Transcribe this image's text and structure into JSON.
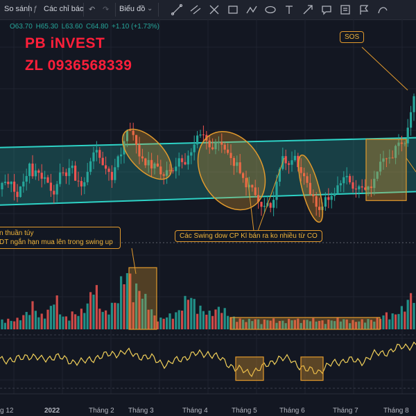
{
  "toolbar": {
    "compare_label": "So sánh",
    "indicators_label": "Các chỉ báo",
    "chart_label": "Biểu đồ",
    "tools": [
      "trend-line-icon",
      "parallel-channel-icon",
      "cross-icon",
      "rectangle-icon",
      "path-icon",
      "ellipse-icon",
      "text-icon",
      "arrow-icon",
      "comment-icon",
      "note-icon",
      "flag-icon",
      "curve-icon"
    ]
  },
  "ohlc": {
    "open": "O63.70",
    "high": "H65.30",
    "low": "L63.60",
    "close": "C64.80",
    "change": "+1.10 (+1.73%)"
  },
  "brand": {
    "line1": "PB iNVEST",
    "line2": "ZL 0936568339"
  },
  "annotations": {
    "sos": "SOS",
    "swing_down": "Các Swing dow CP Kl bán ra ko nhiều từ CO",
    "left_line1": "n thuần túy",
    "left_line2": "DT ngắn hạn mua lên trong swing up"
  },
  "colors": {
    "background": "#131722",
    "up": "#26a69a",
    "down": "#ef5350",
    "channel": "#2ed3c6",
    "annotation": "#e29a2d",
    "oscillator": "#f2d15a",
    "brand": "#ff1f3a"
  },
  "chart_data": {
    "type": "candlestick",
    "title": "",
    "xlabel": "",
    "ylabel": "",
    "x_ticks": [
      "g 12",
      "2022",
      "Tháng 2",
      "Tháng 3",
      "Tháng 4",
      "Tháng 5",
      "Tháng 6",
      "Tháng 7",
      "Tháng 8"
    ],
    "price_range": [
      52,
      80
    ],
    "price_path": [
      [
        0,
        59.5
      ],
      [
        6,
        60.2
      ],
      [
        12,
        59.5
      ],
      [
        18,
        60.8
      ],
      [
        24,
        58.8
      ],
      [
        30,
        60.5
      ],
      [
        36,
        61.3
      ],
      [
        42,
        63.2
      ],
      [
        48,
        60.3
      ],
      [
        54,
        61.8
      ],
      [
        60,
        60.4
      ],
      [
        66,
        61.6
      ],
      [
        72,
        60.4
      ],
      [
        78,
        59.2
      ],
      [
        84,
        61.4
      ],
      [
        90,
        61.8
      ],
      [
        96,
        60.8
      ],
      [
        102,
        62.2
      ],
      [
        108,
        61.4
      ],
      [
        114,
        61.5
      ],
      [
        120,
        60.1
      ],
      [
        126,
        62.3
      ],
      [
        132,
        63.1
      ],
      [
        138,
        64.3
      ],
      [
        144,
        62.8
      ],
      [
        150,
        61.7
      ],
      [
        156,
        62.6
      ],
      [
        162,
        60.6
      ],
      [
        168,
        63.7
      ],
      [
        174,
        64.8
      ],
      [
        180,
        65.8
      ],
      [
        186,
        67.3
      ],
      [
        192,
        66.3
      ],
      [
        198,
        65.1
      ],
      [
        204,
        64.2
      ],
      [
        210,
        63.1
      ],
      [
        216,
        63.7
      ],
      [
        222,
        62.4
      ],
      [
        228,
        61.7
      ],
      [
        234,
        60.9
      ],
      [
        240,
        61.8
      ],
      [
        246,
        62.8
      ],
      [
        252,
        62.3
      ],
      [
        258,
        63.8
      ],
      [
        264,
        63.3
      ],
      [
        270,
        63.7
      ],
      [
        276,
        64.1
      ],
      [
        282,
        65.4
      ],
      [
        288,
        66.4
      ],
      [
        294,
        67.0
      ],
      [
        300,
        65.8
      ],
      [
        306,
        65.3
      ],
      [
        312,
        66.3
      ],
      [
        318,
        65.0
      ],
      [
        324,
        64.4
      ],
      [
        330,
        63.3
      ],
      [
        336,
        62.5
      ],
      [
        342,
        63.5
      ],
      [
        348,
        62.1
      ],
      [
        354,
        60.4
      ],
      [
        360,
        59.7
      ],
      [
        366,
        58.6
      ],
      [
        372,
        57.3
      ],
      [
        378,
        56.7
      ],
      [
        384,
        58.1
      ],
      [
        390,
        57.6
      ],
      [
        396,
        59.3
      ],
      [
        402,
        62.2
      ],
      [
        408,
        63.8
      ],
      [
        414,
        62.6
      ],
      [
        420,
        62.9
      ],
      [
        426,
        63.7
      ],
      [
        432,
        62.7
      ],
      [
        438,
        61.5
      ],
      [
        444,
        60.3
      ],
      [
        450,
        58.2
      ],
      [
        456,
        57.1
      ],
      [
        462,
        56.3
      ],
      [
        468,
        57.5
      ],
      [
        474,
        58.3
      ],
      [
        480,
        59.1
      ],
      [
        486,
        60.6
      ],
      [
        492,
        61.0
      ],
      [
        498,
        60.7
      ],
      [
        504,
        60.1
      ],
      [
        510,
        59.1
      ],
      [
        516,
        59.7
      ],
      [
        522,
        59.9
      ],
      [
        528,
        60.4
      ],
      [
        534,
        59.5
      ],
      [
        540,
        61.2
      ],
      [
        546,
        61.8
      ],
      [
        552,
        63.1
      ],
      [
        558,
        63.4
      ],
      [
        564,
        63.9
      ],
      [
        570,
        65.2
      ],
      [
        576,
        66.4
      ],
      [
        582,
        65.8
      ],
      [
        588,
        66.8
      ],
      [
        594,
        70.5
      ],
      [
        600,
        71.8
      ]
    ],
    "channel": {
      "upper": [
        [
          0,
          65.1
        ],
        [
          600,
          66.4
        ]
      ],
      "lower": [
        [
          0,
          57.4
        ],
        [
          600,
          59.2
        ]
      ]
    },
    "volume": {
      "range": [
        0,
        100
      ],
      "path": [
        [
          0,
          14
        ],
        [
          8,
          18
        ],
        [
          16,
          15
        ],
        [
          24,
          17
        ],
        [
          32,
          22
        ],
        [
          40,
          30
        ],
        [
          48,
          45
        ],
        [
          56,
          22
        ],
        [
          64,
          26
        ],
        [
          72,
          35
        ],
        [
          80,
          62
        ],
        [
          88,
          24
        ],
        [
          96,
          20
        ],
        [
          104,
          28
        ],
        [
          112,
          26
        ],
        [
          120,
          34
        ],
        [
          128,
          46
        ],
        [
          136,
          90
        ],
        [
          144,
          38
        ],
        [
          152,
          28
        ],
        [
          160,
          42
        ],
        [
          168,
          46
        ],
        [
          176,
          88
        ],
        [
          184,
          100
        ],
        [
          192,
          74
        ],
        [
          200,
          70
        ],
        [
          208,
          58
        ],
        [
          216,
          40
        ],
        [
          224,
          20
        ],
        [
          232,
          18
        ],
        [
          240,
          22
        ],
        [
          248,
          26
        ],
        [
          256,
          28
        ],
        [
          264,
          44
        ],
        [
          272,
          62
        ],
        [
          280,
          48
        ],
        [
          288,
          38
        ],
        [
          296,
          30
        ],
        [
          304,
          28
        ],
        [
          312,
          34
        ],
        [
          320,
          40
        ],
        [
          328,
          26
        ],
        [
          336,
          20
        ],
        [
          344,
          18
        ],
        [
          352,
          16
        ],
        [
          360,
          16
        ],
        [
          368,
          18
        ],
        [
          376,
          14
        ],
        [
          384,
          16
        ],
        [
          392,
          18
        ],
        [
          400,
          14
        ],
        [
          408,
          14
        ],
        [
          416,
          16
        ],
        [
          424,
          18
        ],
        [
          432,
          16
        ],
        [
          440,
          15
        ],
        [
          448,
          18
        ],
        [
          456,
          16
        ],
        [
          464,
          14
        ],
        [
          472,
          15
        ],
        [
          480,
          16
        ],
        [
          488,
          18
        ],
        [
          496,
          17
        ],
        [
          504,
          15
        ],
        [
          512,
          14
        ],
        [
          520,
          15
        ],
        [
          528,
          17
        ],
        [
          536,
          16
        ],
        [
          544,
          18
        ],
        [
          552,
          24
        ],
        [
          560,
          28
        ],
        [
          568,
          24
        ],
        [
          576,
          32
        ],
        [
          584,
          40
        ],
        [
          592,
          58
        ],
        [
          600,
          68
        ]
      ]
    },
    "oscillator": {
      "range": [
        -1,
        1
      ],
      "values": [
        [
          0,
          0.1
        ],
        [
          20,
          0.0
        ],
        [
          40,
          0.22
        ],
        [
          60,
          0.05
        ],
        [
          80,
          0.18
        ],
        [
          100,
          0.0
        ],
        [
          120,
          -0.05
        ],
        [
          140,
          0.15
        ],
        [
          160,
          0.25
        ],
        [
          180,
          0.35
        ],
        [
          200,
          0.2
        ],
        [
          220,
          0.1
        ],
        [
          240,
          -0.15
        ],
        [
          260,
          0.08
        ],
        [
          280,
          0.25
        ],
        [
          300,
          0.3
        ],
        [
          320,
          0.05
        ],
        [
          340,
          -0.3
        ],
        [
          360,
          -0.45
        ],
        [
          380,
          -0.25
        ],
        [
          400,
          0.1
        ],
        [
          420,
          0.05
        ],
        [
          440,
          -0.35
        ],
        [
          460,
          -0.4
        ],
        [
          480,
          -0.1
        ],
        [
          500,
          0.05
        ],
        [
          520,
          -0.05
        ],
        [
          540,
          0.25
        ],
        [
          560,
          0.35
        ],
        [
          580,
          0.55
        ],
        [
          600,
          0.62
        ]
      ]
    },
    "highlight_boxes": [
      {
        "panel": "volume",
        "x": [
          186,
          226
        ]
      },
      {
        "panel": "volume",
        "x": [
          332,
          548
        ]
      },
      {
        "panel": "oscillator",
        "x": [
          340,
          380
        ]
      },
      {
        "panel": "oscillator",
        "x": [
          434,
          466
        ]
      },
      {
        "panel": "price",
        "x": [
          528,
          586
        ],
        "y": [
          58.0,
          66.2
        ]
      }
    ],
    "highlight_ellipses": [
      {
        "cx": 212,
        "cy": 64.2,
        "rx": 23,
        "ry": 45,
        "angle": -44
      },
      {
        "cx": 334,
        "cy": 62.0,
        "rx": 44,
        "ry": 60,
        "angle": -30
      },
      {
        "cx": 448,
        "cy": 59.6,
        "rx": 12,
        "ry": 50,
        "angle": -15
      }
    ]
  }
}
